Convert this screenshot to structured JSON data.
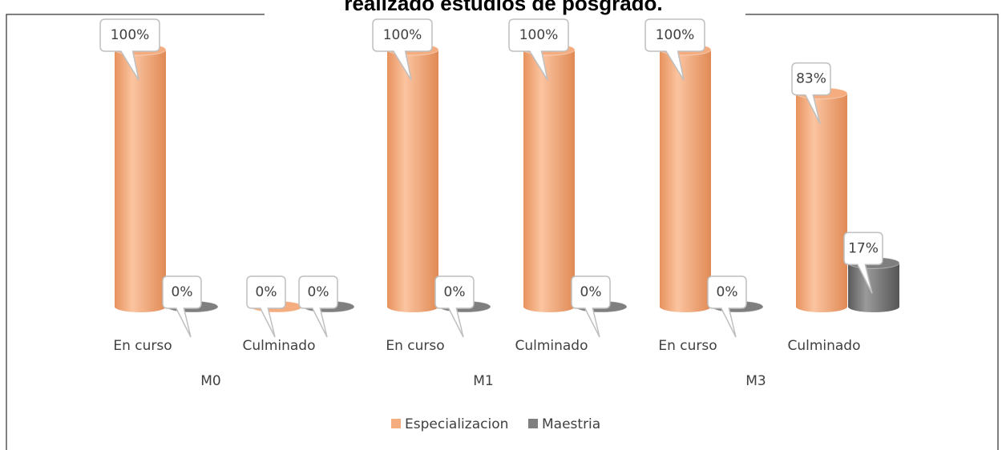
{
  "chart_data": {
    "type": "bar",
    "title": "realizado estudios de posgrado.",
    "groups": [
      "M0",
      "M1",
      "M3"
    ],
    "categories": [
      "En curso",
      "Culminado",
      "En curso",
      "Culminado",
      "En curso",
      "Culminado"
    ],
    "series": [
      {
        "name": "Especializacion",
        "color": "#f5ad7f",
        "values": [
          100,
          0,
          100,
          100,
          100,
          83
        ],
        "value_labels": [
          "100%",
          "0%",
          "100%",
          "100%",
          "100%",
          "83%"
        ]
      },
      {
        "name": "Maestria",
        "color": "#7f7f7f",
        "values": [
          0,
          0,
          0,
          0,
          0,
          17
        ],
        "value_labels": [
          "0%",
          "0%",
          "0%",
          "0%",
          "0%",
          "17%"
        ]
      }
    ],
    "legend": "bottom"
  }
}
